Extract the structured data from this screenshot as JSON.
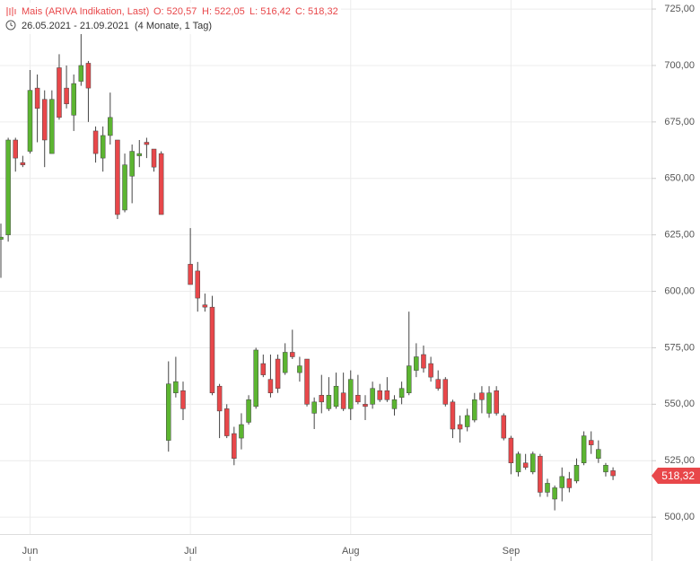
{
  "chart_data": {
    "type": "candlestick",
    "header": {
      "symbol": "Mais (ARIVA Indikation, Last)",
      "open": "O: 520,57",
      "high": "H: 522,05",
      "low": "L: 516,42",
      "close": "C: 518,32",
      "range": "26.05.2021 - 21.09.2021",
      "duration": "(4 Monate, 1 Tag)"
    },
    "categories": [
      null,
      null,
      null,
      null,
      "Jun",
      null,
      null,
      null,
      null,
      null,
      null,
      null,
      null,
      null,
      null,
      null,
      null,
      null,
      null,
      null,
      null,
      null,
      null,
      null,
      null,
      null,
      "Jul",
      null,
      null,
      null,
      null,
      null,
      null,
      null,
      null,
      null,
      null,
      null,
      null,
      null,
      null,
      null,
      null,
      null,
      null,
      null,
      null,
      null,
      "Aug",
      null,
      null,
      null,
      null,
      null,
      null,
      null,
      null,
      null,
      null,
      null,
      null,
      null,
      null,
      null,
      null,
      null,
      null,
      null,
      null,
      null,
      "Sep",
      null,
      null,
      null,
      null,
      null,
      null,
      null,
      null,
      null,
      null,
      null,
      null,
      null,
      null
    ],
    "open": [
      623,
      625,
      667,
      657,
      662,
      690,
      685,
      661,
      699,
      690,
      678,
      693,
      701,
      671,
      659,
      669,
      667,
      636,
      651,
      660,
      666,
      663,
      661,
      534,
      555,
      556,
      612,
      609,
      594,
      593,
      558,
      548,
      537,
      535,
      542,
      549,
      568,
      561,
      570,
      564,
      573,
      564,
      570,
      546,
      554,
      548,
      549,
      555,
      548,
      554,
      550,
      550,
      556,
      556,
      548,
      553,
      555,
      565,
      572,
      568,
      561,
      561,
      551,
      541,
      540,
      543,
      555,
      546,
      556,
      545,
      535,
      520,
      524,
      520,
      527,
      511,
      508,
      513,
      517,
      516,
      524,
      534,
      526,
      520,
      520.57
    ],
    "high": [
      630,
      668,
      668,
      660,
      698,
      696,
      689,
      689,
      705,
      700,
      696,
      714,
      702,
      673,
      673,
      688,
      667,
      661,
      665,
      667,
      668,
      663,
      662,
      569,
      571,
      560,
      628,
      613,
      599,
      598,
      559,
      550,
      540,
      546,
      554,
      575,
      572,
      572,
      572,
      577,
      583,
      571,
      570,
      553,
      563,
      562,
      564,
      564,
      565,
      563,
      554,
      560,
      559,
      562,
      554,
      560,
      591,
      577,
      576,
      571,
      565,
      562,
      552,
      545,
      548,
      555,
      558,
      558,
      558,
      546,
      536,
      529,
      528,
      529,
      528,
      517,
      514,
      522,
      520,
      526,
      538,
      538,
      534,
      524,
      522.05
    ],
    "low": [
      606,
      622,
      653,
      655,
      661,
      666,
      655,
      661,
      676,
      681,
      671,
      691,
      675,
      657,
      653,
      665,
      632,
      635,
      639,
      655,
      659,
      653,
      634,
      529,
      553,
      543,
      603,
      591,
      591,
      554,
      535,
      535,
      523,
      530,
      541,
      548,
      562,
      553,
      555,
      563,
      570,
      560,
      549,
      539,
      546,
      547,
      548,
      547,
      543,
      550,
      543,
      548,
      551,
      551,
      545,
      550,
      554,
      562,
      564,
      560,
      556,
      549,
      535,
      533,
      538,
      542,
      546,
      544,
      545,
      534,
      519,
      518,
      521,
      519,
      509,
      509,
      503,
      507,
      511,
      515,
      523,
      528,
      524,
      518,
      516.42
    ],
    "close": [
      624,
      667,
      659,
      656,
      689,
      681,
      667,
      685,
      677,
      683,
      692,
      700,
      690,
      661,
      669,
      677,
      634,
      656,
      662,
      661,
      665,
      655,
      634,
      559,
      560,
      548,
      603,
      597,
      593,
      555,
      547,
      536,
      526,
      541,
      552,
      574,
      563,
      555,
      557,
      573,
      571,
      567,
      550,
      551,
      551,
      554,
      558,
      548,
      561,
      551,
      549,
      557,
      552,
      552,
      552,
      557,
      567,
      571,
      566,
      562,
      557,
      550,
      539,
      539,
      545,
      552,
      552,
      555,
      546,
      535,
      524,
      528,
      522,
      528,
      511,
      515,
      513,
      518,
      513,
      523,
      536,
      532,
      530,
      523,
      518.32
    ],
    "last_price": {
      "value": 518.32,
      "label": "518,32"
    },
    "up_color": "#5cb531",
    "down_color": "#e8474a",
    "ylim": [
      492.5,
      729
    ],
    "yticks": [
      {
        "value": 500,
        "label": "500,00"
      },
      {
        "value": 525,
        "label": "525,00"
      },
      {
        "value": 550,
        "label": "550,00"
      },
      {
        "value": 575,
        "label": "575,00"
      },
      {
        "value": 600,
        "label": "600,00"
      },
      {
        "value": 625,
        "label": "625,00"
      },
      {
        "value": 650,
        "label": "650,00"
      },
      {
        "value": 675,
        "label": "675,00"
      },
      {
        "value": 700,
        "label": "700,00"
      },
      {
        "value": 725,
        "label": "725,00"
      }
    ],
    "grid": true
  }
}
